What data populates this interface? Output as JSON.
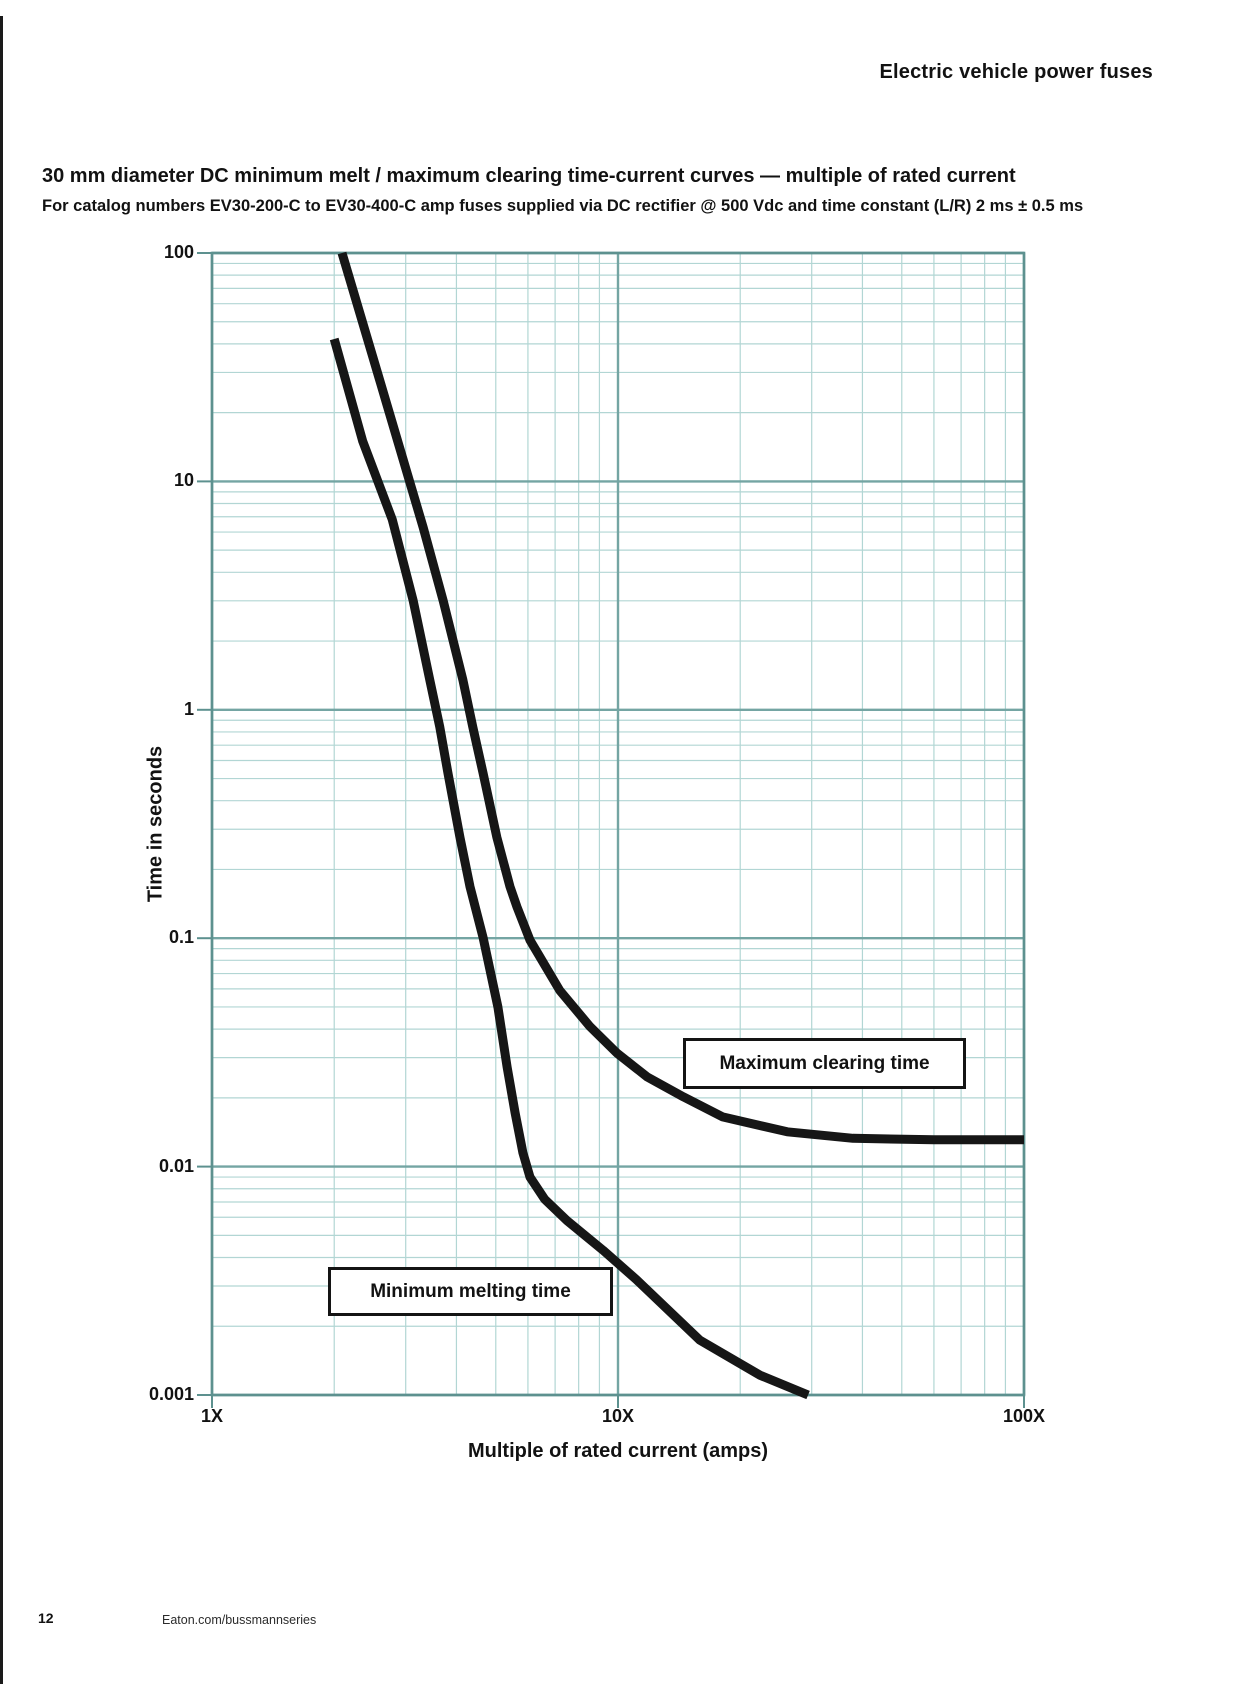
{
  "page": {
    "header": "Electric vehicle power fuses",
    "title": "30 mm diameter DC minimum melt / maximum clearing time-current curves — multiple of rated current",
    "subtitle": "For catalog numbers EV30-200-C to EV30-400-C amp fuses supplied via DC rectifier @ 500 Vdc and time constant (L/R) 2 ms ± 0.5 ms",
    "footer": {
      "page_number": "12",
      "website": "Eaton.com/bussmannseries"
    }
  },
  "chart_data": {
    "type": "line",
    "title": "30 mm diameter DC minimum melt / maximum clearing time-current curves — multiple of rated current",
    "xlabel": "Multiple of rated current (amps)",
    "ylabel": "Time in seconds",
    "x_scale": "log",
    "y_scale": "log",
    "xlim": [
      1,
      100
    ],
    "ylim": [
      0.001,
      100
    ],
    "grid": true,
    "legend_position": "none",
    "x_ticks": [
      {
        "label": "1X",
        "value": 1
      },
      {
        "label": "10X",
        "value": 10
      },
      {
        "label": "100X",
        "value": 100
      }
    ],
    "y_ticks": [
      {
        "label": "100",
        "value": 100
      },
      {
        "label": "10",
        "value": 10
      },
      {
        "label": "1",
        "value": 1
      },
      {
        "label": "0.1",
        "value": 0.1
      },
      {
        "label": "0.01",
        "value": 0.01
      },
      {
        "label": "0.001",
        "value": 0.001
      }
    ],
    "series": [
      {
        "name": "Minimum melting time",
        "points": [
          [
            2.0,
            42
          ],
          [
            2.35,
            15
          ],
          [
            2.78,
            6.8
          ],
          [
            3.13,
            3.0
          ],
          [
            3.44,
            1.35
          ],
          [
            3.64,
            0.84
          ],
          [
            3.81,
            0.53
          ],
          [
            4.08,
            0.277
          ],
          [
            4.32,
            0.168
          ],
          [
            4.65,
            0.101
          ],
          [
            5.06,
            0.05
          ],
          [
            5.33,
            0.0273
          ],
          [
            5.58,
            0.0172
          ],
          [
            5.83,
            0.0115
          ],
          [
            6.07,
            0.009
          ],
          [
            6.6,
            0.0072
          ],
          [
            7.49,
            0.0058
          ],
          [
            9.19,
            0.0043
          ],
          [
            11.1,
            0.0032
          ],
          [
            15.9,
            0.00174
          ],
          [
            22.4,
            0.00122
          ],
          [
            29.4,
            0.001
          ]
        ]
      },
      {
        "name": "Maximum clearing time",
        "points": [
          [
            2.09,
            100
          ],
          [
            2.6,
            27
          ],
          [
            3.31,
            6.3
          ],
          [
            3.71,
            3.0
          ],
          [
            4.15,
            1.35
          ],
          [
            4.39,
            0.84
          ],
          [
            4.65,
            0.53
          ],
          [
            5.03,
            0.277
          ],
          [
            5.42,
            0.168
          ],
          [
            5.64,
            0.137
          ],
          [
            6.07,
            0.098
          ],
          [
            7.19,
            0.059
          ],
          [
            8.53,
            0.041
          ],
          [
            9.94,
            0.0314
          ],
          [
            11.8,
            0.0247
          ],
          [
            14.5,
            0.0202
          ],
          [
            18.1,
            0.0165
          ],
          [
            26.1,
            0.0142
          ],
          [
            37.9,
            0.0133
          ],
          [
            60,
            0.0131
          ],
          [
            100,
            0.0131
          ]
        ]
      }
    ],
    "annotations": [
      {
        "text": "Maximum clearing time"
      },
      {
        "text": "Minimum melting time"
      }
    ],
    "colors": {
      "curve": "#161616",
      "grid_minor": "#b2d6d4",
      "grid_major": "#74a5a3",
      "axis": "#5d918f"
    }
  }
}
